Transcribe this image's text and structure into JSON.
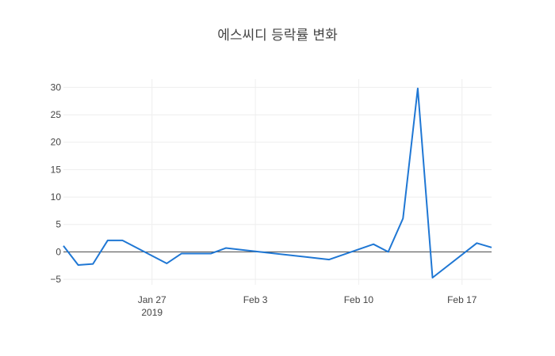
{
  "chart_data": {
    "type": "line",
    "title": "에스씨디 등락률 변화",
    "xlabel": "",
    "ylabel": "",
    "xlim": [
      "2019-01-21",
      "2019-02-19"
    ],
    "ylim": [
      -6,
      31.5
    ],
    "grid": true,
    "x_ticks": [
      {
        "date": "2019-01-27",
        "label": "Jan 27",
        "sublabel": "2019"
      },
      {
        "date": "2019-02-03",
        "label": "Feb 3",
        "sublabel": ""
      },
      {
        "date": "2019-02-10",
        "label": "Feb 10",
        "sublabel": ""
      },
      {
        "date": "2019-02-17",
        "label": "Feb 17",
        "sublabel": ""
      }
    ],
    "y_ticks": [
      -5,
      0,
      5,
      10,
      15,
      20,
      25,
      30
    ],
    "series": [
      {
        "color": "#1f77d4",
        "points": [
          {
            "x": "2019-01-21",
            "y": 1.1
          },
          {
            "x": "2019-01-22",
            "y": -2.4
          },
          {
            "x": "2019-01-23",
            "y": -2.2
          },
          {
            "x": "2019-01-24",
            "y": 2.1
          },
          {
            "x": "2019-01-25",
            "y": 2.1
          },
          {
            "x": "2019-01-28",
            "y": -2.1
          },
          {
            "x": "2019-01-29",
            "y": -0.3
          },
          {
            "x": "2019-01-31",
            "y": -0.3
          },
          {
            "x": "2019-02-01",
            "y": 0.7
          },
          {
            "x": "2019-02-03",
            "y": 0.1
          },
          {
            "x": "2019-02-08",
            "y": -1.4
          },
          {
            "x": "2019-02-11",
            "y": 1.4
          },
          {
            "x": "2019-02-12",
            "y": 0.0
          },
          {
            "x": "2019-02-13",
            "y": 6.1
          },
          {
            "x": "2019-02-14",
            "y": 29.8
          },
          {
            "x": "2019-02-15",
            "y": -4.7
          },
          {
            "x": "2019-02-18",
            "y": 1.6
          },
          {
            "x": "2019-02-19",
            "y": 0.8
          }
        ]
      }
    ]
  }
}
